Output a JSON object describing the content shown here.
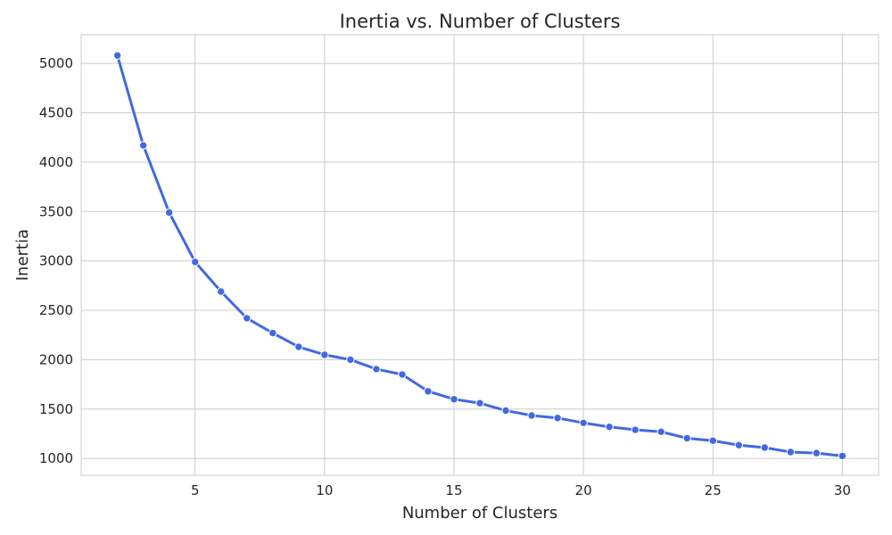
{
  "chart_data": {
    "type": "line",
    "title": "Inertia vs. Number of Clusters",
    "xlabel": "Number of Clusters",
    "ylabel": "Inertia",
    "xlim": [
      0.6,
      31.4
    ],
    "ylim": [
      830,
      5290
    ],
    "xticks": [
      5,
      10,
      15,
      20,
      25,
      30
    ],
    "yticks": [
      1000,
      1500,
      2000,
      2500,
      3000,
      3500,
      4000,
      4500,
      5000
    ],
    "grid": true,
    "series": [
      {
        "color": "#4169e1",
        "x": [
          2,
          3,
          4,
          5,
          6,
          7,
          8,
          9,
          10,
          11,
          12,
          13,
          14,
          15,
          16,
          17,
          18,
          19,
          20,
          21,
          22,
          23,
          24,
          25,
          26,
          27,
          28,
          29,
          30
        ],
        "y": [
          5080,
          4170,
          3490,
          2990,
          2690,
          2420,
          2270,
          2130,
          2050,
          2000,
          1905,
          1850,
          1680,
          1600,
          1560,
          1485,
          1435,
          1410,
          1360,
          1320,
          1290,
          1270,
          1205,
          1180,
          1135,
          1110,
          1065,
          1055,
          1025
        ]
      }
    ]
  }
}
